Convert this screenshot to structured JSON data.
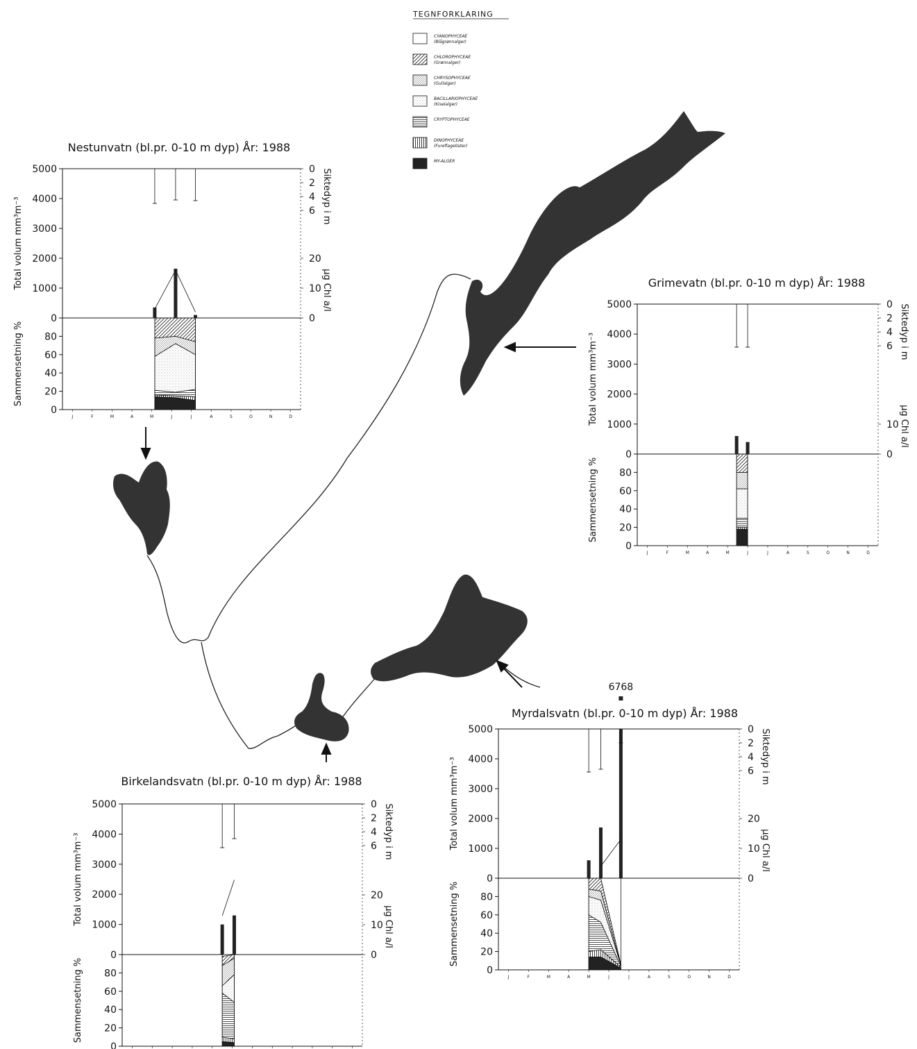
{
  "legend": {
    "title": "TEGNFORKLARING",
    "items": [
      {
        "name": "CYANOPHYCEAE",
        "sub": "(Blågrønnalger)",
        "pattern": "white"
      },
      {
        "name": "CHLOROPHYCEAE",
        "sub": "(Grønnalger)",
        "pattern": "diag"
      },
      {
        "name": "CHRYSOPHYCEAE",
        "sub": "(Gullalger)",
        "pattern": "diagfine"
      },
      {
        "name": "BACILLARIOPHYCEAE",
        "sub": "(Kiselalger)",
        "pattern": "dots"
      },
      {
        "name": "CRYPTOPHYCEAE",
        "sub": "",
        "pattern": "horiz"
      },
      {
        "name": "DINOPHYCEAE",
        "sub": "(Fureflagellater)",
        "pattern": "vert"
      },
      {
        "name": "MY-ALGER",
        "sub": "",
        "pattern": "solid"
      }
    ]
  },
  "colors": {
    "map_fill": "#333333",
    "ink": "#111111"
  },
  "chart_data": [
    {
      "type": "bar",
      "title": "Nestunvatn (bl.pr. 0-10 m dyp) År: 1988",
      "ylabel": "Total volum mm³m⁻³",
      "ylabel_bottom": "Sammensetning %",
      "right_label_top": "Siktedyp i m",
      "right_label_bottom": "µg Chl a/l",
      "ylim": [
        0,
        5000
      ],
      "yticks": [
        "0",
        "1000",
        "2000",
        "3000",
        "4000",
        "5000"
      ],
      "pct_ticks": [
        "0",
        "20",
        "40",
        "60",
        "80"
      ],
      "secchi_ticks": [
        "0",
        "2",
        "4",
        "6"
      ],
      "chl_ticks": [
        "0",
        "10",
        "20"
      ],
      "months": [
        "J",
        "F",
        "M",
        "A",
        "M",
        "J",
        "J",
        "A",
        "S",
        "O",
        "N",
        "D"
      ],
      "samples": [
        {
          "t": 4.15,
          "volume": 350,
          "secchi": 5.0,
          "chl": 3
        },
        {
          "t": 5.2,
          "volume": 1650,
          "secchi": 4.5,
          "chl": 16
        },
        {
          "t": 6.2,
          "volume": 100,
          "secchi": 4.6,
          "chl": 2
        }
      ],
      "composition": [
        {
          "t": 4.15,
          "shares": [
            0,
            22,
            20,
            37,
            5,
            2,
            14
          ]
        },
        {
          "t": 5.2,
          "shares": [
            0,
            20,
            8,
            53,
            4,
            2,
            13
          ]
        },
        {
          "t": 6.2,
          "shares": [
            0,
            26,
            14,
            38,
            8,
            4,
            10
          ]
        }
      ]
    },
    {
      "type": "bar",
      "title": "Grimevatn (bl.pr. 0-10 m dyp) År: 1988",
      "ylabel": "Total volum mm³m⁻³",
      "ylabel_bottom": "Sammensetning %",
      "right_label_top": "Siktedyp i m",
      "right_label_bottom": "µg Chl a/l",
      "ylim": [
        0,
        5000
      ],
      "yticks": [
        "0",
        "1000",
        "2000",
        "3000",
        "4000",
        "5000"
      ],
      "pct_ticks": [
        "0",
        "20",
        "40",
        "60",
        "80"
      ],
      "secchi_ticks": [
        "0",
        "2",
        "4",
        "6"
      ],
      "chl_ticks": [
        "0",
        "10"
      ],
      "months": [
        "J",
        "F",
        "M",
        "A",
        "M",
        "J",
        "J",
        "A",
        "S",
        "O",
        "N",
        "D"
      ],
      "samples": [
        {
          "t": 4.45,
          "volume": 600,
          "secchi": 6.2,
          "chl": null
        },
        {
          "t": 5.0,
          "volume": 400,
          "secchi": 6.2,
          "chl": null
        }
      ],
      "composition": [
        {
          "t": 4.45,
          "shares": [
            0,
            20,
            18,
            32,
            10,
            2,
            18
          ]
        },
        {
          "t": 5.0,
          "shares": [
            0,
            20,
            18,
            32,
            10,
            2,
            18
          ]
        }
      ]
    },
    {
      "type": "bar",
      "title": "Birkelandsvatn (bl.pr. 0-10 m dyp) År: 1988",
      "ylabel": "Total volum mm³m⁻³",
      "ylabel_bottom": "Sammensetning %",
      "right_label_top": "Siktedyp i m",
      "right_label_bottom": "µg Chl a/l",
      "ylim": [
        0,
        5000
      ],
      "yticks": [
        "0",
        "1000",
        "2000",
        "3000",
        "4000",
        "5000"
      ],
      "pct_ticks": [
        "0",
        "20",
        "40",
        "60",
        "80"
      ],
      "secchi_ticks": [
        "0",
        "2",
        "4",
        "6"
      ],
      "chl_ticks": [
        "0",
        "10",
        "20"
      ],
      "months": [
        "J",
        "F",
        "M",
        "A",
        "M",
        "J",
        "J",
        "A",
        "S",
        "O",
        "N",
        "D"
      ],
      "samples": [
        {
          "t": 4.5,
          "volume": 1000,
          "secchi": 6.3,
          "chl": 13
        },
        {
          "t": 5.1,
          "volume": 1300,
          "secchi": 5.0,
          "chl": 25
        }
      ],
      "composition": [
        {
          "t": 4.5,
          "shares": [
            2,
            10,
            22,
            8,
            48,
            5,
            5
          ]
        },
        {
          "t": 5.1,
          "shares": [
            0,
            4,
            18,
            30,
            40,
            4,
            4
          ]
        }
      ]
    },
    {
      "type": "bar",
      "title": "Myrdalsvatn (bl.pr. 0-10 m dyp) År: 1988",
      "annotation": "6768",
      "ylabel": "Total volum mm³m⁻³",
      "ylabel_bottom": "Sammensetning %",
      "right_label_top": "Siktedyp i m",
      "right_label_bottom": "µg Chl a/l",
      "ylim": [
        0,
        5000
      ],
      "yticks": [
        "0",
        "1000",
        "2000",
        "3000",
        "4000",
        "5000"
      ],
      "pct_ticks": [
        "0",
        "20",
        "40",
        "60",
        "80"
      ],
      "secchi_ticks": [
        "0",
        "2",
        "4",
        "6"
      ],
      "chl_ticks": [
        "0",
        "10",
        "20"
      ],
      "months": [
        "J",
        "F",
        "M",
        "A",
        "M",
        "J",
        "J",
        "A",
        "S",
        "O",
        "N",
        "D"
      ],
      "samples": [
        {
          "t": 4.0,
          "volume": 600,
          "secchi": 6.2,
          "chl": null
        },
        {
          "t": 4.6,
          "volume": 1700,
          "secchi": 5.8,
          "chl": 4
        },
        {
          "t": 5.6,
          "volume": 6768,
          "secchi": 2.0,
          "chl": 13
        }
      ],
      "composition": [
        {
          "t": 4.0,
          "shares": [
            0,
            12,
            8,
            20,
            40,
            6,
            14
          ]
        },
        {
          "t": 4.6,
          "shares": [
            0,
            14,
            10,
            24,
            30,
            8,
            14
          ]
        },
        {
          "t": 5.6,
          "shares": [
            0,
            1,
            0,
            1,
            1,
            1,
            2
          ]
        }
      ]
    }
  ]
}
